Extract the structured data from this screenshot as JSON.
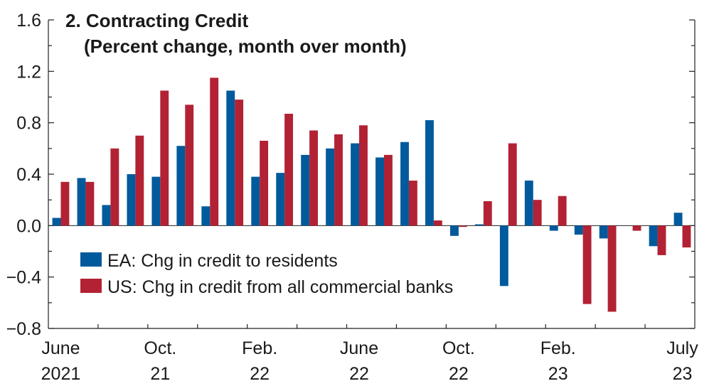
{
  "chart_data": {
    "type": "bar",
    "title": "2. Contracting Credit",
    "subtitle": "(Percent change, month over month)",
    "xlabel": "",
    "ylabel": "",
    "ylim": [
      -0.8,
      1.6
    ],
    "yticks": [
      "1.6",
      "1.2",
      "0.8",
      "0.4",
      "0.0",
      "−0.4",
      "−0.8"
    ],
    "ytick_values": [
      1.6,
      1.2,
      0.8,
      0.4,
      0.0,
      -0.4,
      -0.8
    ],
    "grid": false,
    "legend_position": "lower-left",
    "categories": [
      "2021-06",
      "2021-07",
      "2021-08",
      "2021-09",
      "2021-10",
      "2021-11",
      "2021-12",
      "2022-01",
      "2022-02",
      "2022-03",
      "2022-04",
      "2022-05",
      "2022-06",
      "2022-07",
      "2022-08",
      "2022-09",
      "2022-10",
      "2022-11",
      "2022-12",
      "2023-01",
      "2023-02",
      "2023-03",
      "2023-04",
      "2023-05",
      "2023-06",
      "2023-07"
    ],
    "x_tick_labels": [
      {
        "index": 0,
        "line1": "June",
        "line2": "2021"
      },
      {
        "index": 4,
        "line1": "Oct.",
        "line2": "21"
      },
      {
        "index": 8,
        "line1": "Feb.",
        "line2": "22"
      },
      {
        "index": 12,
        "line1": "June",
        "line2": "22"
      },
      {
        "index": 16,
        "line1": "Oct.",
        "line2": "22"
      },
      {
        "index": 20,
        "line1": "Feb.",
        "line2": "23"
      },
      {
        "index": 25,
        "line1": "July",
        "line2": "23"
      }
    ],
    "series": [
      {
        "name": "EA: Chg in credit to residents",
        "color": "#005a9c",
        "values": [
          0.06,
          0.37,
          0.16,
          0.4,
          0.38,
          0.62,
          0.15,
          1.05,
          0.38,
          0.41,
          0.55,
          0.6,
          0.64,
          0.53,
          0.65,
          0.82,
          -0.08,
          0.01,
          -0.47,
          0.35,
          -0.04,
          -0.07,
          -0.1,
          0.0,
          -0.16,
          0.1
        ]
      },
      {
        "name": "US: Chg in credit from all commercial banks",
        "color": "#b22234",
        "values": [
          0.34,
          0.34,
          0.6,
          0.7,
          1.05,
          0.94,
          1.15,
          0.98,
          0.66,
          0.87,
          0.74,
          0.71,
          0.78,
          0.55,
          0.35,
          0.04,
          -0.01,
          0.19,
          0.64,
          0.2,
          0.23,
          -0.61,
          -0.67,
          -0.04,
          -0.23,
          -0.17
        ]
      }
    ]
  }
}
